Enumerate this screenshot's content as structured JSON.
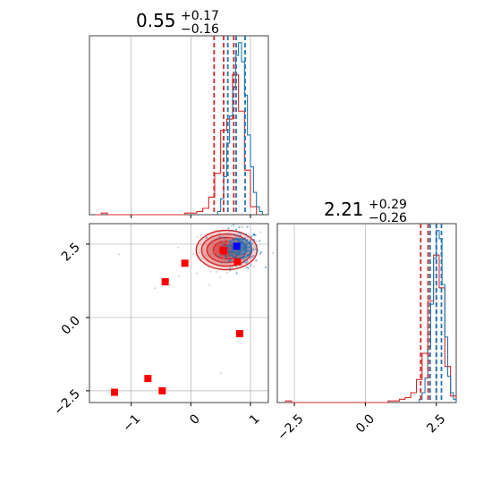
{
  "colors": {
    "red": "#d62728",
    "blue": "#1f77b4",
    "marker_red": "#ff0000",
    "marker_blue": "#0000ff",
    "grid": "#b0b0b0",
    "scatter_gray": "#9a9a9a"
  },
  "chart_data": [
    {
      "type": "histogram",
      "panel": "top-left",
      "title": {
        "value": "0.55",
        "plus": "+0.17",
        "minus": "−0.16"
      },
      "xlim": [
        -1.7,
        1.3
      ],
      "grid": true,
      "series": [
        {
          "color": "red",
          "bin_edges": [
            -1.6,
            -1.5,
            -1.4,
            -1.3,
            -1.2,
            -1.1,
            -1.0,
            -0.9,
            -0.8,
            -0.7,
            -0.6,
            -0.5,
            -0.4,
            -0.3,
            -0.2,
            -0.1,
            0.0,
            0.1,
            0.2,
            0.3,
            0.4,
            0.5,
            0.6,
            0.7,
            0.8,
            0.9,
            1.0,
            1.1
          ],
          "counts": [
            0,
            1,
            0,
            0,
            0,
            0,
            0,
            0,
            0,
            0,
            0,
            0,
            0,
            0,
            0,
            1,
            1,
            2,
            4,
            11,
            26,
            53,
            60,
            88,
            65,
            28,
            5
          ],
          "quantile_lines": [
            0.39,
            0.55,
            0.72
          ]
        },
        {
          "color": "blue",
          "bin_edges": [
            0.45,
            0.5,
            0.55,
            0.6,
            0.65,
            0.7,
            0.75,
            0.8,
            0.85,
            0.9,
            0.95,
            1.0,
            1.05,
            1.1,
            1.15,
            1.2
          ],
          "counts": [
            2,
            10,
            24,
            45,
            62,
            80,
            100,
            108,
            96,
            75,
            50,
            30,
            14,
            5,
            2
          ],
          "quantile_lines": [
            0.62,
            0.76,
            0.91
          ]
        }
      ]
    },
    {
      "type": "scatter",
      "panel": "bottom-left",
      "xlim": [
        -1.7,
        1.3
      ],
      "ylim": [
        -2.9,
        3.2
      ],
      "xticks": [
        "−1",
        "0",
        "1"
      ],
      "xtick_values": [
        -1,
        0,
        1
      ],
      "yticks": [
        "−2.5",
        "0.0",
        "2.5"
      ],
      "ytick_values": [
        -2.5,
        0.0,
        2.5
      ],
      "grid": true,
      "red_markers": [
        {
          "x": -1.28,
          "y": -2.55
        },
        {
          "x": -0.72,
          "y": -2.08
        },
        {
          "x": -0.48,
          "y": -2.5
        },
        {
          "x": -0.43,
          "y": 1.22
        },
        {
          "x": -0.1,
          "y": 1.85
        },
        {
          "x": 0.82,
          "y": -0.55
        },
        {
          "x": 0.78,
          "y": 1.9
        },
        {
          "x": 0.55,
          "y": 2.28
        }
      ],
      "blue_markers": [
        {
          "x": 0.77,
          "y": 2.43
        }
      ],
      "red_density_center": {
        "x": 0.6,
        "y": 2.3
      },
      "blue_density_center": {
        "x": 0.82,
        "y": 2.35
      }
    },
    {
      "type": "histogram",
      "panel": "bottom-right",
      "title": {
        "value": "2.21",
        "plus": "+0.29",
        "minus": "−0.26"
      },
      "xlim": [
        -3.1,
        3.2
      ],
      "xticks": [
        "−2.5",
        "0.0",
        "2.5"
      ],
      "xtick_values": [
        -2.5,
        0.0,
        2.5
      ],
      "grid": true,
      "series": [
        {
          "color": "red",
          "bin_edges": [
            -2.8,
            -2.6,
            -2.4,
            -2.2,
            -2.0,
            -1.8,
            -1.6,
            -1.4,
            -1.2,
            -1.0,
            -0.8,
            -0.6,
            -0.4,
            -0.2,
            0.0,
            0.2,
            0.4,
            0.6,
            0.8,
            1.0,
            1.2,
            1.4,
            1.6,
            1.8,
            2.0,
            2.2,
            2.4,
            2.6,
            2.8,
            3.0,
            3.2
          ],
          "counts": [
            1,
            0,
            0,
            0,
            0,
            0,
            0,
            0,
            0,
            0,
            0,
            0,
            0,
            0,
            0,
            0,
            0,
            0,
            1,
            1,
            2,
            3,
            6,
            14,
            30,
            62,
            90,
            70,
            22,
            4
          ],
          "quantile_lines": [
            1.95,
            2.21,
            2.5
          ]
        },
        {
          "color": "blue",
          "bin_edges": [
            1.9,
            2.0,
            2.1,
            2.2,
            2.3,
            2.4,
            2.5,
            2.6,
            2.7,
            2.8,
            2.9,
            3.0,
            3.1,
            3.2
          ],
          "counts": [
            2,
            6,
            15,
            34,
            60,
            88,
            105,
            100,
            72,
            40,
            16,
            6,
            2
          ],
          "quantile_lines": [
            2.28,
            2.5,
            2.68
          ]
        }
      ]
    }
  ]
}
